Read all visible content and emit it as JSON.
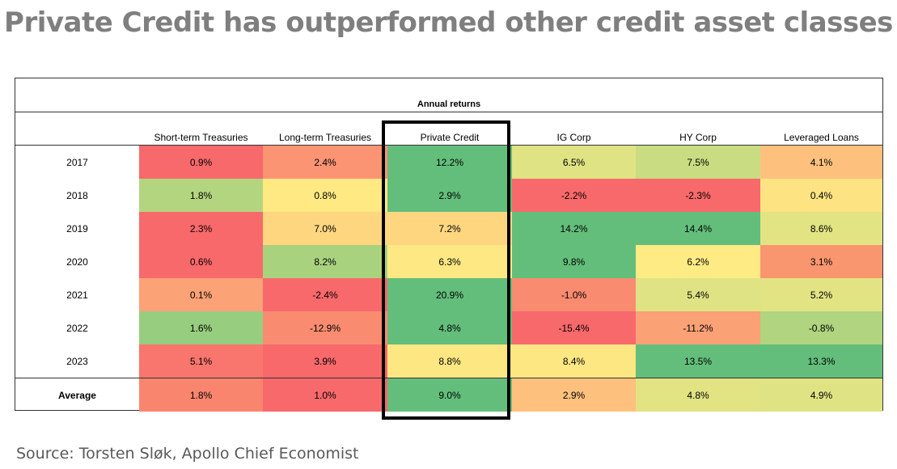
{
  "title": "Private Credit has outperformed other credit asset classes",
  "source": "Source: Torsten Sløk, Apollo Chief Economist",
  "chart_data": {
    "type": "table",
    "group_header": "Annual returns",
    "columns": [
      "Short-term Treasuries",
      "Long-term Treasuries",
      "Private Credit",
      "IG Corp",
      "HY Corp",
      "Leveraged Loans"
    ],
    "highlighted_column": "Private Credit",
    "rows": [
      {
        "label": "2017",
        "values": [
          "0.9%",
          "2.4%",
          "12.2%",
          "6.5%",
          "7.5%",
          "4.1%"
        ],
        "colors": [
          "#f8696b",
          "#fa9473",
          "#63be7b",
          "#dfe383",
          "#c9dc81",
          "#fdc17d"
        ]
      },
      {
        "label": "2018",
        "values": [
          "1.8%",
          "0.8%",
          "2.9%",
          "-2.2%",
          "-2.3%",
          "0.4%"
        ],
        "colors": [
          "#b4d580",
          "#fee983",
          "#63be7b",
          "#f8696b",
          "#f8696b",
          "#fee382"
        ]
      },
      {
        "label": "2019",
        "values": [
          "2.3%",
          "7.0%",
          "7.2%",
          "14.2%",
          "14.4%",
          "8.6%"
        ],
        "colors": [
          "#f8696b",
          "#fed680",
          "#fed680",
          "#63be7b",
          "#63be7b",
          "#e2e383"
        ]
      },
      {
        "label": "2020",
        "values": [
          "0.6%",
          "8.2%",
          "6.3%",
          "9.8%",
          "6.2%",
          "3.1%"
        ],
        "colors": [
          "#f8696b",
          "#a9d27f",
          "#fee883",
          "#63be7b",
          "#ffeb84",
          "#f9966f"
        ]
      },
      {
        "label": "2021",
        "values": [
          "0.1%",
          "-2.4%",
          "20.9%",
          "-1.0%",
          "5.4%",
          "5.2%"
        ],
        "colors": [
          "#fba276",
          "#f8696b",
          "#63be7b",
          "#f98b70",
          "#dfe383",
          "#e2e383"
        ]
      },
      {
        "label": "2022",
        "values": [
          "1.6%",
          "-12.9%",
          "4.8%",
          "-15.4%",
          "-11.2%",
          "-0.8%"
        ],
        "colors": [
          "#97cd7e",
          "#f98c70",
          "#63be7b",
          "#f8696b",
          "#fba176",
          "#b0d47f"
        ]
      },
      {
        "label": "2023",
        "values": [
          "5.1%",
          "3.9%",
          "8.8%",
          "8.4%",
          "13.5%",
          "13.3%"
        ],
        "colors": [
          "#f8766d",
          "#f8696b",
          "#fde783",
          "#fde783",
          "#63be7b",
          "#63be7b"
        ]
      }
    ],
    "average": {
      "label": "Average",
      "values": [
        "1.8%",
        "1.0%",
        "9.0%",
        "2.9%",
        "4.8%",
        "4.9%"
      ],
      "colors": [
        "#f9856f",
        "#f8696b",
        "#63be7b",
        "#fdc17d",
        "#e2e383",
        "#dfe383"
      ]
    }
  }
}
